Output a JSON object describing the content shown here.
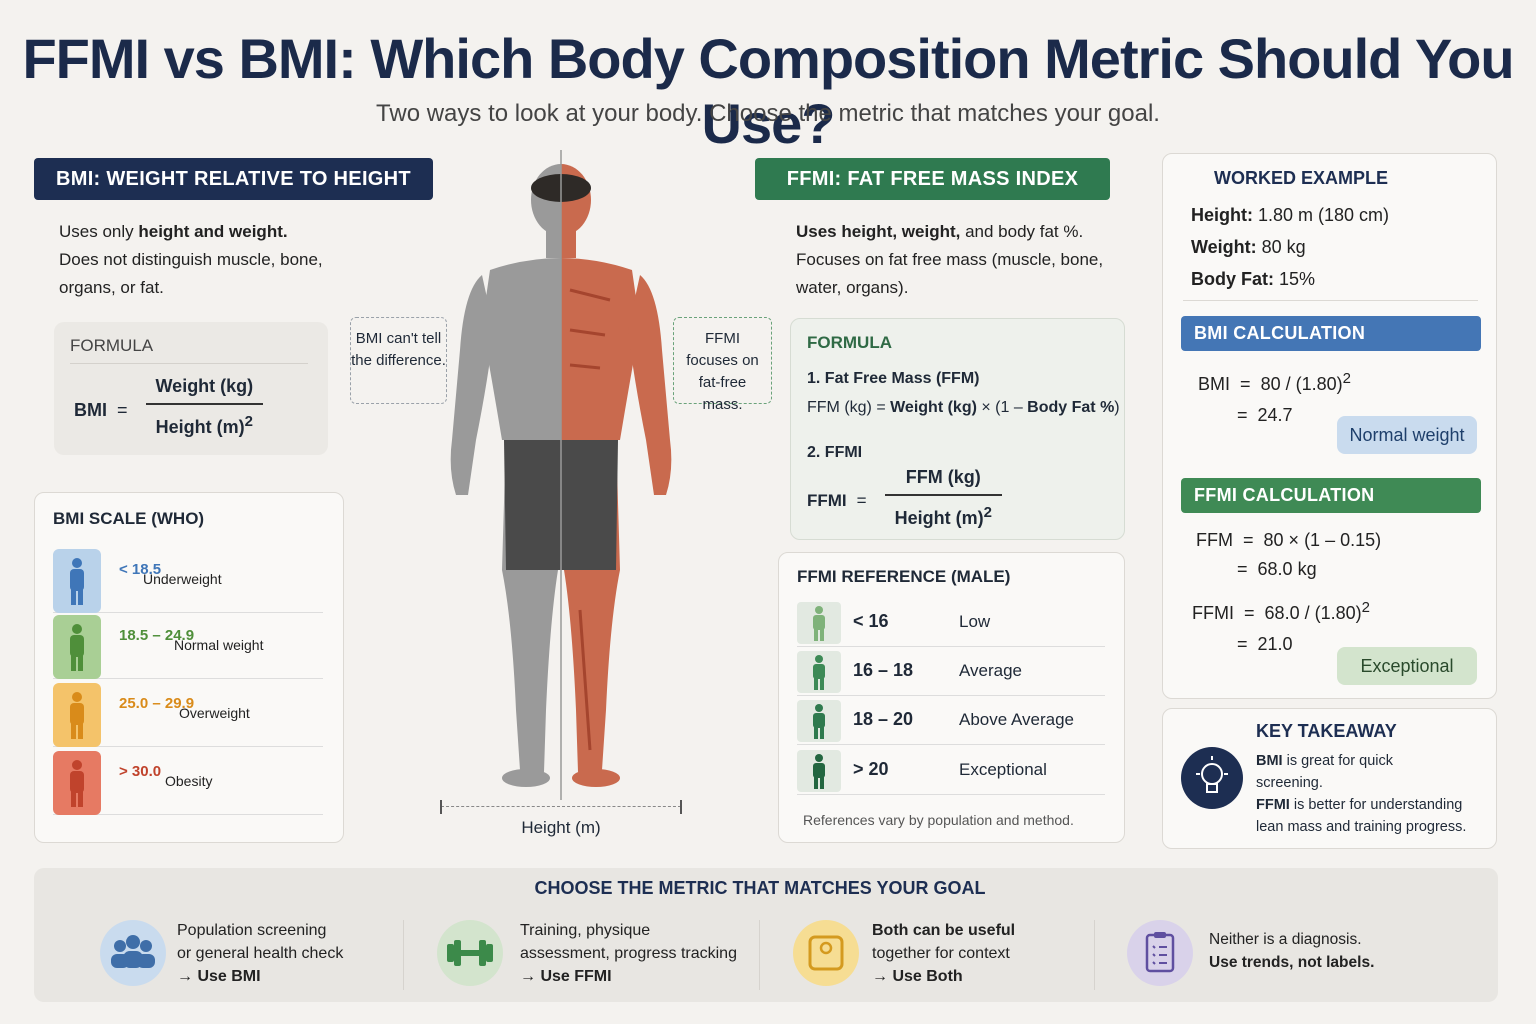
{
  "header": {
    "title": "FFMI vs BMI: Which Body Composition Metric Should You Use?",
    "subtitle": "Two ways to look at your body. Choose the metric that matches your goal."
  },
  "bmi": {
    "heading": "BMI: WEIGHT RELATIVE TO HEIGHT",
    "desc_1a": "Uses only ",
    "desc_1b": "height and weight.",
    "desc_2": "Does not distinguish muscle, bone,",
    "desc_3": "organs, or fat.",
    "formula_label": "FORMULA",
    "formula_lhs": "BMI",
    "formula_eq": "=",
    "formula_num": "Weight (kg)",
    "formula_den": "Height (m)",
    "formula_den_sup": "2",
    "scale_title": "BMI SCALE (WHO)",
    "scale": [
      {
        "range": "< 18.5",
        "name": "Underweight",
        "color": "#3f76b8",
        "bg": "#b9d2ea"
      },
      {
        "range": "18.5 – 24.9",
        "name": "Normal weight",
        "color": "#4f8f3a",
        "bg": "#a9cf95"
      },
      {
        "range": "25.0 – 29.9",
        "name": "Overweight",
        "color": "#d98b1a",
        "bg": "#f4c36a"
      },
      {
        "range": "> 30.0",
        "name": "Obesity",
        "color": "#c0432c",
        "bg": "#e67a63"
      }
    ]
  },
  "figure": {
    "callout_left": "BMI can't tell the difference.",
    "callout_right": "FFMI focuses on fat-free mass.",
    "height_label": "Height (m)"
  },
  "ffmi": {
    "heading": "FFMI: FAT FREE MASS INDEX",
    "desc_1a": "Uses height, weight,",
    "desc_1b": " and body fat %.",
    "desc_2": "Focuses on fat free mass (muscle, bone,",
    "desc_3": "water, organs).",
    "formula_label": "FORMULA",
    "step1_title": "1. Fat Free Mass (FFM)",
    "step1_a": "FFM (kg) = ",
    "step1_b": "Weight (kg)",
    "step1_c": " × (1 – ",
    "step1_d": "Body Fat %",
    "step1_e": ")",
    "step2_title": "2. FFMI",
    "formula_lhs": "FFMI",
    "formula_eq": "=",
    "formula_num": "FFM (kg)",
    "formula_den": "Height (m)",
    "formula_den_sup": "2",
    "ref_title": "FFMI REFERENCE (MALE)",
    "refs": [
      {
        "range": "< 16",
        "name": "Low",
        "color": "#7fb27a"
      },
      {
        "range": "16 – 18",
        "name": "Average",
        "color": "#3d8a56"
      },
      {
        "range": "18 – 20",
        "name": "Above Average",
        "color": "#2f7a4e"
      },
      {
        "range": "> 20",
        "name": "Exceptional",
        "color": "#236640"
      }
    ],
    "ref_note": "References vary by population and method."
  },
  "example": {
    "title": "WORKED EXAMPLE",
    "height_label": "Height:",
    "height_value": " 1.80 m (180 cm)",
    "weight_label": "Weight:",
    "weight_value": " 80 kg",
    "fat_label": "Body Fat:",
    "fat_value": " 15%",
    "bmi_heading": "BMI CALCULATION",
    "bmi_line1_lhs": "BMI",
    "bmi_line1_rhs": "80 / (1.80)",
    "bmi_line2_rhs": "24.7",
    "bmi_result": "Normal weight",
    "ffmi_heading": "FFMI CALCULATION",
    "ffm_line1_lhs": "FFM",
    "ffm_line1_rhs": "80 × (1 – 0.15)",
    "ffm_line2_rhs": "68.0 kg",
    "ffmi_line1_lhs": "FFMI",
    "ffmi_line1_rhs": "68.0 / (1.80)",
    "ffmi_line2_rhs": "21.0",
    "ffmi_result": "Exceptional",
    "eq": "=",
    "sup": "2"
  },
  "takeaway": {
    "title": "KEY TAKEAWAY",
    "line1_b": "BMI",
    "line1": " is great for quick",
    "line2": "screening.",
    "line3_b": "FFMI",
    "line3": " is better for understanding",
    "line4": "lean mass and training progress."
  },
  "goals": {
    "title": "CHOOSE THE METRIC THAT MATCHES YOUR GOAL",
    "items": [
      {
        "l1": "Population screening",
        "l2": "or general health check",
        "l3": "→ Use BMI"
      },
      {
        "l1": "Training, physique",
        "l2": "assessment, progress tracking",
        "l3": "→ Use FFMI"
      },
      {
        "l1": "Both can be useful",
        "l2": "together for context",
        "l3": "→ Use Both"
      },
      {
        "l1": "Neither is a diagnosis.",
        "l2": "Use trends, not labels.",
        "l3": ""
      }
    ]
  }
}
